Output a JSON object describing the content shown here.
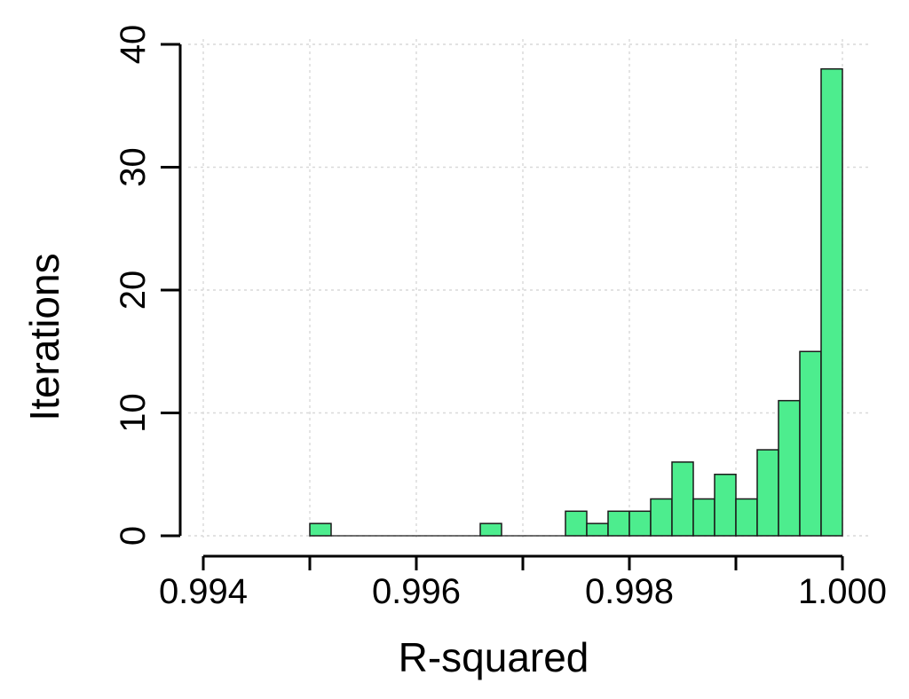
{
  "chart_data": {
    "type": "bar",
    "title": "",
    "xlabel": "R-squared",
    "ylabel": "Iterations",
    "xlim": [
      0.994,
      1.0
    ],
    "ylim": [
      0,
      40
    ],
    "x_ticks": [
      0.994,
      0.995,
      0.996,
      0.997,
      0.998,
      0.999,
      1.0
    ],
    "x_tick_labels": [
      "0.994",
      "0.996",
      "0.998",
      "1.000"
    ],
    "x_tick_label_values": [
      0.994,
      0.996,
      0.998,
      1.0
    ],
    "y_ticks": [
      0,
      10,
      20,
      30,
      40
    ],
    "y_tick_labels": [
      "0",
      "10",
      "20",
      "30",
      "40"
    ],
    "grid": true,
    "bin_width": 0.0002,
    "bins": [
      {
        "x0": 0.995,
        "x1": 0.9952,
        "count": 1
      },
      {
        "x0": 0.9952,
        "x1": 0.9954,
        "count": 0
      },
      {
        "x0": 0.9954,
        "x1": 0.9956,
        "count": 0
      },
      {
        "x0": 0.9956,
        "x1": 0.9958,
        "count": 0
      },
      {
        "x0": 0.9958,
        "x1": 0.996,
        "count": 0
      },
      {
        "x0": 0.996,
        "x1": 0.9962,
        "count": 0
      },
      {
        "x0": 0.9962,
        "x1": 0.9964,
        "count": 0
      },
      {
        "x0": 0.9964,
        "x1": 0.9966,
        "count": 0
      },
      {
        "x0": 0.9966,
        "x1": 0.9968,
        "count": 1
      },
      {
        "x0": 0.9968,
        "x1": 0.997,
        "count": 0
      },
      {
        "x0": 0.997,
        "x1": 0.9972,
        "count": 0
      },
      {
        "x0": 0.9972,
        "x1": 0.9974,
        "count": 0
      },
      {
        "x0": 0.9974,
        "x1": 0.9976,
        "count": 2
      },
      {
        "x0": 0.9976,
        "x1": 0.9978,
        "count": 1
      },
      {
        "x0": 0.9978,
        "x1": 0.998,
        "count": 2
      },
      {
        "x0": 0.998,
        "x1": 0.9982,
        "count": 2
      },
      {
        "x0": 0.9982,
        "x1": 0.9984,
        "count": 3
      },
      {
        "x0": 0.9984,
        "x1": 0.9986,
        "count": 6
      },
      {
        "x0": 0.9986,
        "x1": 0.9988,
        "count": 3
      },
      {
        "x0": 0.9988,
        "x1": 0.999,
        "count": 5
      },
      {
        "x0": 0.999,
        "x1": 0.9992,
        "count": 3
      },
      {
        "x0": 0.9992,
        "x1": 0.9994,
        "count": 7
      },
      {
        "x0": 0.9994,
        "x1": 0.9996,
        "count": 11
      },
      {
        "x0": 0.9996,
        "x1": 0.9998,
        "count": 15
      },
      {
        "x0": 0.9998,
        "x1": 1.0,
        "count": 38
      }
    ],
    "colors": {
      "bar_fill": "#4ded8e",
      "bar_stroke": "#1a1a1a",
      "grid": "#d9d9d9",
      "axis": "#000000"
    }
  }
}
